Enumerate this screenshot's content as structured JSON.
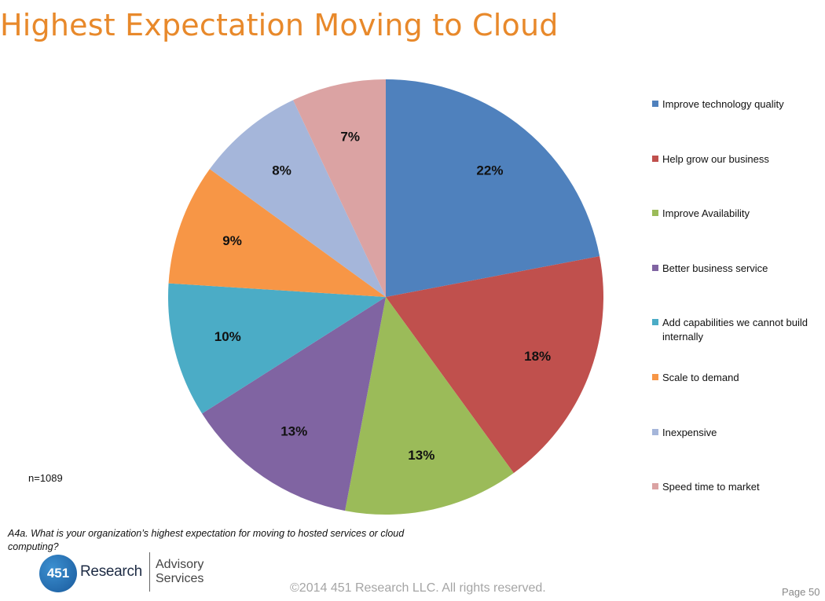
{
  "title": "Highest Expectation Moving to Cloud",
  "chart_data": {
    "type": "pie",
    "title": "Highest Expectation Moving to Cloud",
    "labels": [
      "Improve technology quality",
      "Help grow our business",
      "Improve Availability",
      "Better business service",
      "Add capabilities we cannot build internally",
      "Scale to demand",
      "Inexpensive",
      "Speed time to market"
    ],
    "values": [
      22,
      18,
      13,
      13,
      10,
      9,
      8,
      7
    ],
    "value_labels": [
      "22%",
      "18%",
      "13%",
      "13%",
      "10%",
      "9%",
      "8%",
      "7%"
    ],
    "colors": [
      "#4f81bd",
      "#c0504d",
      "#9bbb59",
      "#8064a2",
      "#4bacc6",
      "#f79646",
      "#a5b6da",
      "#dba3a3"
    ],
    "start_angle": "12 o'clock",
    "direction": "clockwise",
    "legend_position": "right"
  },
  "note": "n=1089",
  "question": "A4a.  What is your organization’s highest expectation for moving to hosted services or cloud computing?",
  "logo": {
    "number": "451",
    "word": "Research",
    "sub": "Advisory Services"
  },
  "footer": {
    "copyright": "©2014 451 Research LLC. All rights reserved.",
    "page": "Page 50"
  }
}
